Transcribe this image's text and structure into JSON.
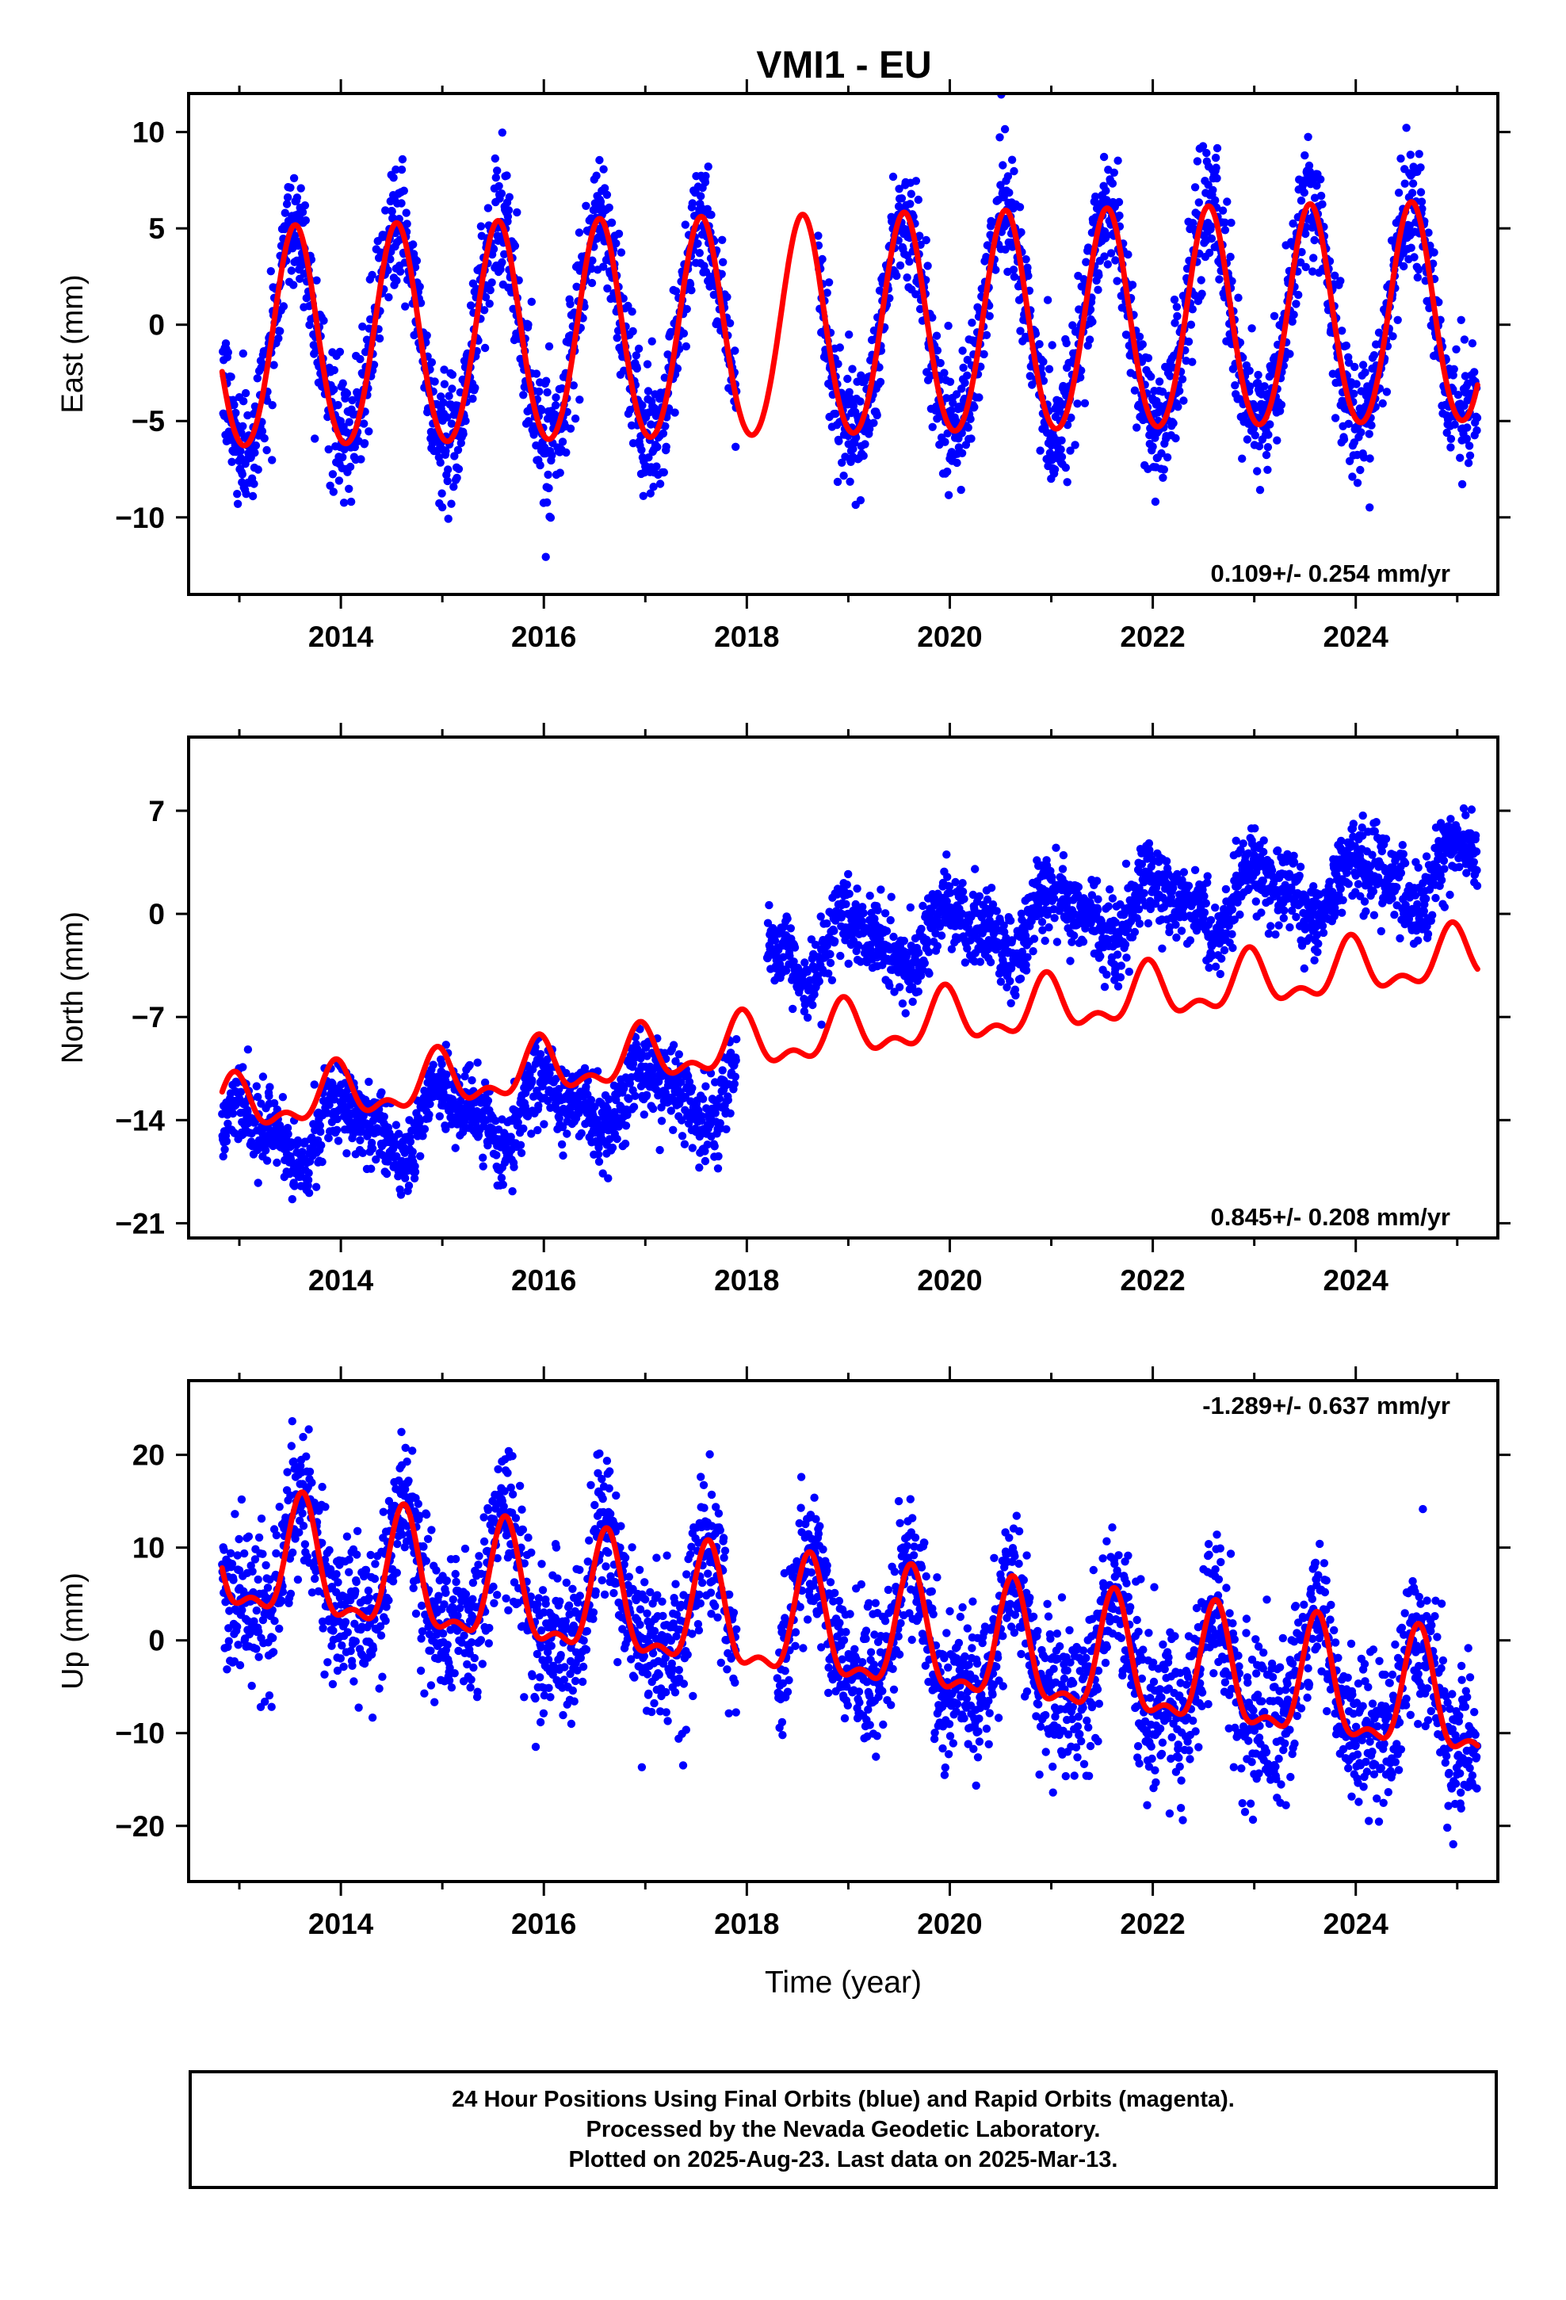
{
  "title": "VMI1 - EU",
  "colors": {
    "data": "#0000ff",
    "model": "#ff0000",
    "frame": "#000000"
  },
  "footer": {
    "line1": "24 Hour Positions Using Final Orbits (blue) and Rapid Orbits (magenta).",
    "line2": "Processed by the Nevada Geodetic Laboratory.",
    "line3": "Plotted on 2025-Aug-23. Last data on 2025-Mar-13."
  },
  "chart_data": [
    {
      "type": "scatter",
      "panel": "east",
      "ylabel": "East (mm)",
      "xlabel": "",
      "rate_label": "0.109+/- 0.254 mm/yr",
      "rate_position": "bottom-right",
      "xlim": [
        2012.5,
        2025.4
      ],
      "ylim": [
        -14,
        12
      ],
      "xticks": [
        2014,
        2016,
        2018,
        2020,
        2022,
        2024
      ],
      "xtick_labels": [
        "2014",
        "2016",
        "2018",
        "2020",
        "2022",
        "2024"
      ],
      "yticks": [
        -10,
        -5,
        0,
        5,
        10
      ],
      "ytick_labels": [
        "−10",
        "−5",
        "0",
        "5",
        "10"
      ],
      "data_range": [
        2012.83,
        2025.2
      ],
      "gaps": [
        [
          2017.9,
          2018.7
        ]
      ],
      "series": [
        {
          "kind": "points",
          "color": "#0000ff",
          "model": {
            "offset": -1.0,
            "rate": 0.109,
            "annual_amp": 5.7,
            "annual_peak": 0.55,
            "semi_amp": 0.4,
            "semi_peak": 0.55
          },
          "scatter_sd": 1.6
        },
        {
          "kind": "model-line",
          "color": "#ff0000",
          "model": {
            "offset": -1.0,
            "rate": 0.109,
            "annual_amp": 5.7,
            "annual_peak": 0.55,
            "semi_amp": 0.4,
            "semi_peak": 0.55
          }
        }
      ]
    },
    {
      "type": "scatter",
      "panel": "north",
      "ylabel": "North (mm)",
      "xlabel": "",
      "rate_label": "0.845+/- 0.208 mm/yr",
      "rate_position": "bottom-right",
      "xlim": [
        2012.5,
        2025.4
      ],
      "ylim": [
        -22,
        12
      ],
      "xticks": [
        2014,
        2016,
        2018,
        2020,
        2022,
        2024
      ],
      "xtick_labels": [
        "2014",
        "2016",
        "2018",
        "2020",
        "2022",
        "2024"
      ],
      "yticks": [
        -21,
        -14,
        -7,
        0,
        7
      ],
      "ytick_labels": [
        "−21",
        "−14",
        "−7",
        "0",
        "7"
      ],
      "data_range": [
        2012.83,
        2025.2
      ],
      "gaps": [
        [
          2017.9,
          2018.2
        ]
      ],
      "series": [
        {
          "kind": "points",
          "color": "#0000ff",
          "segments": [
            {
              "range": [
                2012.83,
                2017.9
              ],
              "offset": -15.3,
              "rate": 0.7
            },
            {
              "range": [
                2018.2,
                2025.2
              ],
              "offset": -2.8,
              "rate": 0.85
            }
          ],
          "model": {
            "annual_amp": 1.8,
            "annual_peak": 0.05,
            "semi_amp": 0.8,
            "semi_peak": 0.9
          },
          "scatter_sd": 1.3
        },
        {
          "kind": "model-line",
          "color": "#ff0000",
          "model": {
            "offset": -13.3,
            "rate": 0.845,
            "annual_amp": 1.6,
            "annual_peak": 0.95,
            "semi_amp": 0.9,
            "semi_peak": 0.95
          }
        }
      ]
    },
    {
      "type": "scatter",
      "panel": "up",
      "ylabel": "Up (mm)",
      "xlabel": "Time (year)",
      "rate_label": "-1.289+/- 0.637 mm/yr",
      "rate_position": "top-right",
      "xlim": [
        2012.5,
        2025.4
      ],
      "ylim": [
        -26,
        28
      ],
      "xticks": [
        2014,
        2016,
        2018,
        2020,
        2022,
        2024
      ],
      "xtick_labels": [
        "2014",
        "2016",
        "2018",
        "2020",
        "2022",
        "2024"
      ],
      "yticks": [
        -20,
        -10,
        0,
        10,
        20
      ],
      "ytick_labels": [
        "−20",
        "−10",
        "0",
        "10",
        "20"
      ],
      "data_range": [
        2012.83,
        2025.2
      ],
      "gaps": [
        [
          2017.9,
          2018.3
        ]
      ],
      "series": [
        {
          "kind": "points",
          "color": "#0000ff",
          "model": {
            "offset": 8.5,
            "rate": -1.289,
            "annual_amp": 6.0,
            "annual_peak": 0.62,
            "semi_amp": 2.5,
            "semi_peak": 0.62
          },
          "scatter_sd": 4.0
        },
        {
          "kind": "model-line",
          "color": "#ff0000",
          "model": {
            "offset": 8.5,
            "rate": -1.289,
            "annual_amp": 6.0,
            "annual_peak": 0.62,
            "semi_amp": 2.5,
            "semi_peak": 0.62
          }
        }
      ]
    }
  ]
}
